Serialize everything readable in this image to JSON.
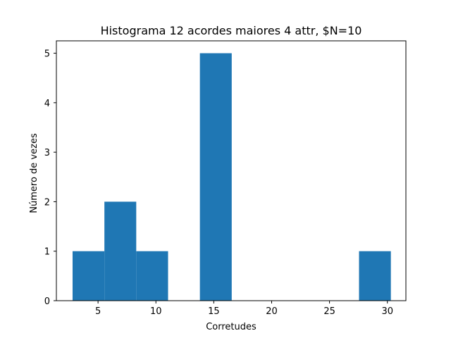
{
  "chart_data": {
    "type": "bar",
    "title": "Histograma 12 acordes maiores 4 attr, $N=10",
    "xlabel": "Corretudes",
    "ylabel": "Número de vezes",
    "bins": [
      {
        "x0": 2.8,
        "x1": 5.55,
        "count": 1
      },
      {
        "x0": 5.55,
        "x1": 8.3,
        "count": 2
      },
      {
        "x0": 8.3,
        "x1": 11.05,
        "count": 1
      },
      {
        "x0": 11.05,
        "x1": 13.8,
        "count": 0
      },
      {
        "x0": 13.8,
        "x1": 16.55,
        "count": 5
      },
      {
        "x0": 16.55,
        "x1": 19.3,
        "count": 0
      },
      {
        "x0": 19.3,
        "x1": 22.05,
        "count": 0
      },
      {
        "x0": 22.05,
        "x1": 24.8,
        "count": 0
      },
      {
        "x0": 24.8,
        "x1": 27.55,
        "count": 0
      },
      {
        "x0": 27.55,
        "x1": 30.3,
        "count": 1
      }
    ],
    "xlim": [
      1.4,
      31.6
    ],
    "ylim": [
      0,
      5.25
    ],
    "xticks": [
      5,
      10,
      15,
      20,
      25,
      30
    ],
    "yticks": [
      0,
      1,
      2,
      3,
      4,
      5
    ],
    "bar_color": "#1f77b4",
    "grid": false
  }
}
